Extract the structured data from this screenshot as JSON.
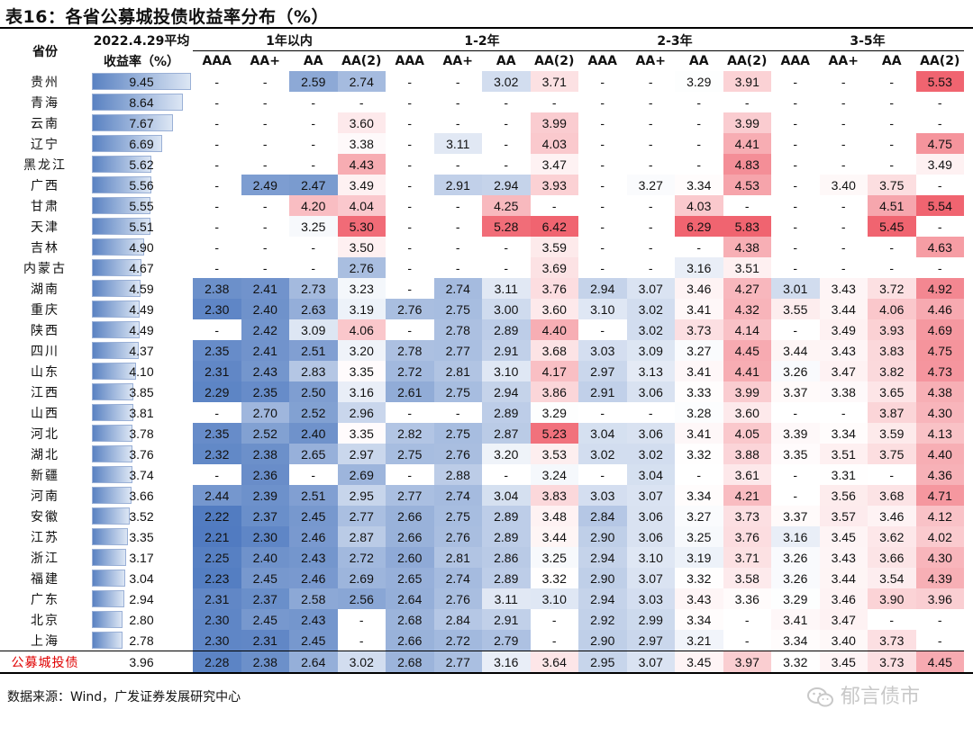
{
  "title": "表16：各省公募城投债收益率分布（%）",
  "header": {
    "province": "省份",
    "avg_line1": "2022.4.29平均",
    "avg_line2": "收益率（%）",
    "groups": [
      "1年以内",
      "1-2年",
      "2-3年",
      "3-5年"
    ],
    "ratings": [
      "AAA",
      "AA+",
      "AA",
      "AA(2)"
    ]
  },
  "rows": [
    {
      "p": "贵州",
      "avg": "9.45",
      "v": [
        "-",
        "-",
        "2.59",
        "2.74",
        "-",
        "-",
        "3.02",
        "3.71",
        "-",
        "-",
        "3.29",
        "3.91",
        "-",
        "-",
        "-",
        "5.53"
      ]
    },
    {
      "p": "青海",
      "avg": "8.64",
      "v": [
        "-",
        "-",
        "-",
        "-",
        "-",
        "-",
        "-",
        "-",
        "-",
        "-",
        "-",
        "-",
        "-",
        "-",
        "-",
        "-"
      ]
    },
    {
      "p": "云南",
      "avg": "7.67",
      "v": [
        "-",
        "-",
        "-",
        "3.60",
        "-",
        "-",
        "-",
        "3.99",
        "-",
        "-",
        "-",
        "3.99",
        "-",
        "-",
        "-",
        "-"
      ]
    },
    {
      "p": "辽宁",
      "avg": "6.69",
      "v": [
        "-",
        "-",
        "-",
        "3.38",
        "-",
        "3.11",
        "-",
        "4.03",
        "-",
        "-",
        "-",
        "4.41",
        "-",
        "-",
        "-",
        "4.75"
      ]
    },
    {
      "p": "黑龙江",
      "avg": "5.62",
      "v": [
        "-",
        "-",
        "-",
        "4.43",
        "-",
        "-",
        "-",
        "3.47",
        "-",
        "-",
        "-",
        "4.83",
        "-",
        "-",
        "-",
        "3.49"
      ]
    },
    {
      "p": "广西",
      "avg": "5.56",
      "v": [
        "-",
        "2.49",
        "2.47",
        "3.49",
        "-",
        "2.91",
        "2.94",
        "3.93",
        "-",
        "3.27",
        "3.34",
        "4.53",
        "-",
        "3.40",
        "3.75",
        "-"
      ]
    },
    {
      "p": "甘肃",
      "avg": "5.55",
      "v": [
        "-",
        "-",
        "4.20",
        "4.04",
        "-",
        "-",
        "4.25",
        "-",
        "-",
        "-",
        "4.03",
        "-",
        "-",
        "-",
        "4.51",
        "5.54"
      ]
    },
    {
      "p": "天津",
      "avg": "5.51",
      "v": [
        "-",
        "-",
        "3.25",
        "5.30",
        "-",
        "-",
        "5.28",
        "6.42",
        "-",
        "-",
        "6.29",
        "5.83",
        "-",
        "-",
        "5.45",
        "-"
      ]
    },
    {
      "p": "吉林",
      "avg": "4.90",
      "v": [
        "-",
        "-",
        "-",
        "3.50",
        "-",
        "-",
        "-",
        "3.59",
        "-",
        "-",
        "-",
        "4.38",
        "-",
        "-",
        "-",
        "4.63"
      ]
    },
    {
      "p": "内蒙古",
      "avg": "4.67",
      "v": [
        "-",
        "-",
        "-",
        "2.76",
        "-",
        "-",
        "-",
        "3.69",
        "-",
        "-",
        "3.16",
        "3.51",
        "-",
        "-",
        "-",
        "-"
      ]
    },
    {
      "p": "湖南",
      "avg": "4.59",
      "v": [
        "2.38",
        "2.41",
        "2.73",
        "3.23",
        "-",
        "2.74",
        "3.11",
        "3.76",
        "2.94",
        "3.07",
        "3.46",
        "4.27",
        "3.01",
        "3.43",
        "3.72",
        "4.92"
      ]
    },
    {
      "p": "重庆",
      "avg": "4.49",
      "v": [
        "2.30",
        "2.40",
        "2.63",
        "3.19",
        "2.76",
        "2.75",
        "3.00",
        "3.60",
        "3.10",
        "3.02",
        "3.41",
        "4.32",
        "3.55",
        "3.44",
        "4.06",
        "4.46"
      ]
    },
    {
      "p": "陕西",
      "avg": "4.49",
      "v": [
        "-",
        "2.42",
        "3.09",
        "4.06",
        "-",
        "2.78",
        "2.89",
        "4.40",
        "-",
        "3.02",
        "3.73",
        "4.14",
        "-",
        "3.49",
        "3.93",
        "4.69"
      ]
    },
    {
      "p": "四川",
      "avg": "4.37",
      "v": [
        "2.35",
        "2.41",
        "2.51",
        "3.20",
        "2.78",
        "2.77",
        "2.91",
        "3.68",
        "3.03",
        "3.09",
        "3.27",
        "4.45",
        "3.44",
        "3.43",
        "3.83",
        "4.75"
      ]
    },
    {
      "p": "山东",
      "avg": "4.10",
      "v": [
        "2.31",
        "2.43",
        "2.83",
        "3.35",
        "2.72",
        "2.81",
        "3.10",
        "4.17",
        "2.97",
        "3.13",
        "3.41",
        "4.41",
        "3.26",
        "3.47",
        "3.82",
        "4.73"
      ]
    },
    {
      "p": "江西",
      "avg": "3.85",
      "v": [
        "2.29",
        "2.35",
        "2.50",
        "3.16",
        "2.61",
        "2.75",
        "2.94",
        "3.86",
        "2.91",
        "3.06",
        "3.33",
        "3.99",
        "3.37",
        "3.38",
        "3.65",
        "4.38"
      ]
    },
    {
      "p": "山西",
      "avg": "3.81",
      "v": [
        "-",
        "2.70",
        "2.52",
        "2.96",
        "-",
        "-",
        "2.89",
        "3.29",
        "-",
        "-",
        "3.28",
        "3.60",
        "-",
        "-",
        "3.87",
        "4.30"
      ]
    },
    {
      "p": "河北",
      "avg": "3.78",
      "v": [
        "2.35",
        "2.52",
        "2.40",
        "3.35",
        "2.82",
        "2.75",
        "2.87",
        "5.23",
        "3.04",
        "3.06",
        "3.41",
        "4.05",
        "3.39",
        "3.34",
        "3.59",
        "4.13"
      ]
    },
    {
      "p": "湖北",
      "avg": "3.76",
      "v": [
        "2.32",
        "2.38",
        "2.65",
        "2.97",
        "2.75",
        "2.76",
        "3.20",
        "3.53",
        "3.02",
        "3.02",
        "3.32",
        "3.88",
        "3.35",
        "3.51",
        "3.75",
        "4.40"
      ]
    },
    {
      "p": "新疆",
      "avg": "3.74",
      "v": [
        "-",
        "2.36",
        "-",
        "2.69",
        "-",
        "2.88",
        "-",
        "3.24",
        "-",
        "3.04",
        "-",
        "3.61",
        "-",
        "3.31",
        "-",
        "4.36"
      ]
    },
    {
      "p": "河南",
      "avg": "3.66",
      "v": [
        "2.44",
        "2.39",
        "2.51",
        "2.95",
        "2.77",
        "2.74",
        "3.04",
        "3.83",
        "3.03",
        "3.07",
        "3.34",
        "4.21",
        "-",
        "3.56",
        "3.68",
        "4.71"
      ]
    },
    {
      "p": "安徽",
      "avg": "3.52",
      "v": [
        "2.22",
        "2.37",
        "2.45",
        "2.77",
        "2.66",
        "2.75",
        "2.89",
        "3.48",
        "2.84",
        "3.06",
        "3.27",
        "3.73",
        "3.37",
        "3.57",
        "3.46",
        "4.12"
      ]
    },
    {
      "p": "江苏",
      "avg": "3.35",
      "v": [
        "2.21",
        "2.30",
        "2.46",
        "2.87",
        "2.66",
        "2.76",
        "2.89",
        "3.44",
        "2.90",
        "3.06",
        "3.25",
        "3.76",
        "3.16",
        "3.45",
        "3.62",
        "4.02"
      ]
    },
    {
      "p": "浙江",
      "avg": "3.17",
      "v": [
        "2.25",
        "2.40",
        "2.43",
        "2.72",
        "2.60",
        "2.81",
        "2.86",
        "3.25",
        "2.94",
        "3.10",
        "3.19",
        "3.71",
        "3.26",
        "3.43",
        "3.66",
        "4.30"
      ]
    },
    {
      "p": "福建",
      "avg": "3.04",
      "v": [
        "2.23",
        "2.45",
        "2.46",
        "2.69",
        "2.65",
        "2.74",
        "2.89",
        "3.32",
        "2.90",
        "3.07",
        "3.32",
        "3.58",
        "3.26",
        "3.44",
        "3.54",
        "4.39"
      ]
    },
    {
      "p": "广东",
      "avg": "2.94",
      "v": [
        "2.31",
        "2.37",
        "2.58",
        "2.56",
        "2.64",
        "2.76",
        "3.11",
        "3.10",
        "2.94",
        "3.03",
        "3.43",
        "3.36",
        "3.29",
        "3.46",
        "3.90",
        "3.96"
      ]
    },
    {
      "p": "北京",
      "avg": "2.80",
      "v": [
        "2.30",
        "2.45",
        "2.43",
        "-",
        "2.68",
        "2.84",
        "2.91",
        "-",
        "2.92",
        "2.99",
        "3.34",
        "-",
        "3.41",
        "3.47",
        "-",
        "-"
      ]
    },
    {
      "p": "上海",
      "avg": "2.78",
      "v": [
        "2.30",
        "2.31",
        "2.45",
        "-",
        "2.66",
        "2.72",
        "2.79",
        "-",
        "2.90",
        "2.97",
        "3.21",
        "-",
        "3.34",
        "3.40",
        "3.73",
        "-"
      ]
    }
  ],
  "total": {
    "p": "公募城投债",
    "avg": "3.96",
    "v": [
      "2.28",
      "2.38",
      "2.64",
      "3.02",
      "2.68",
      "2.77",
      "3.16",
      "3.64",
      "2.95",
      "3.07",
      "3.45",
      "3.97",
      "3.32",
      "3.45",
      "3.73",
      "4.45"
    ]
  },
  "source": "数据来源：Wind，广发证券发展研究中心",
  "watermark": "郁言债市",
  "colors": {
    "blue_dark": "#4f7ac0",
    "white": "#ffffff",
    "red_dark": "#f06470",
    "total_label": "#e00000"
  }
}
